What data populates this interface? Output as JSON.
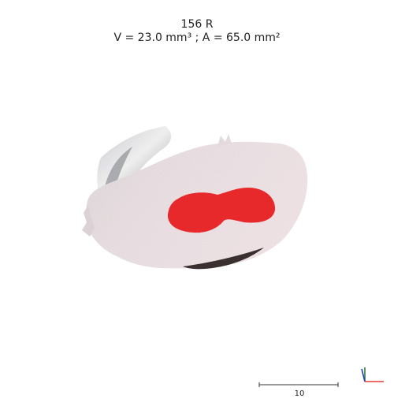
{
  "header": {
    "specimen_id": "156 R",
    "measurements": "V = 23.0 mm³ ; A = 65.0 mm²"
  },
  "scale": {
    "label": "10"
  },
  "colors": {
    "highlight_region": "#e8292b",
    "tissue": "#ece0e3",
    "axis_x": "#e53935",
    "axis_y": "#2e7d32",
    "axis_z": "#1e40c8"
  },
  "icons": {
    "axis": "xyz-axis-triad-icon"
  }
}
